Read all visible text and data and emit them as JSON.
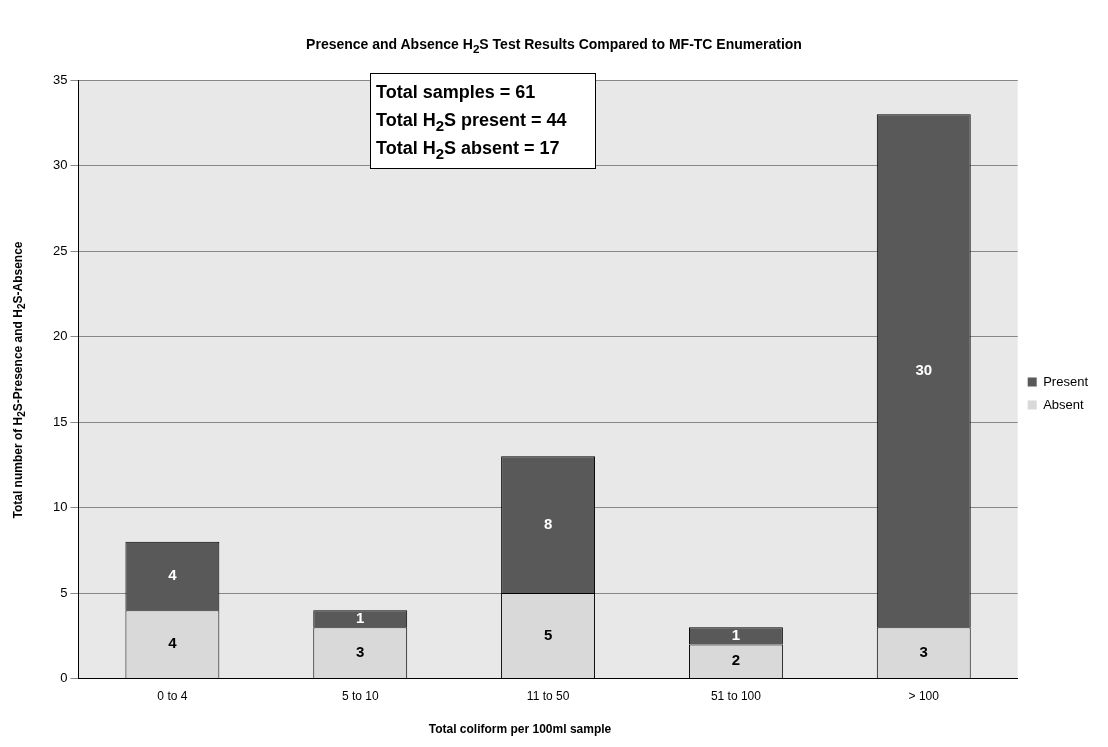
{
  "chart_data": {
    "type": "bar",
    "title": "Presence and Absence H$_{2}$S Test Results Compared to MF-TC Enumeration",
    "xlabel": "Total coliform per 100ml sample",
    "ylabel": "Total number of H$_{2}$S-Presence and H$_{2}$S-Absence",
    "categories": [
      "0 to 4",
      "5 to 10",
      "11 to 50",
      "51 to 100",
      "> 100"
    ],
    "series": [
      {
        "name": "Absent",
        "color": "#d9d9d9",
        "values": [
          4,
          3,
          5,
          2,
          3
        ]
      },
      {
        "name": "Present",
        "color": "#595959",
        "values": [
          4,
          1,
          8,
          1,
          30
        ]
      }
    ],
    "stacked": true,
    "ylim": [
      0,
      35
    ],
    "yticks": [
      0,
      5,
      10,
      15,
      20,
      25,
      30,
      35
    ],
    "grid": "y",
    "legend": "right",
    "data_labels": true,
    "annotations": [
      "Total samples = 61",
      "Total H$_{2}$S present = 44",
      "Total H$_{2}$S absent = 17"
    ]
  }
}
